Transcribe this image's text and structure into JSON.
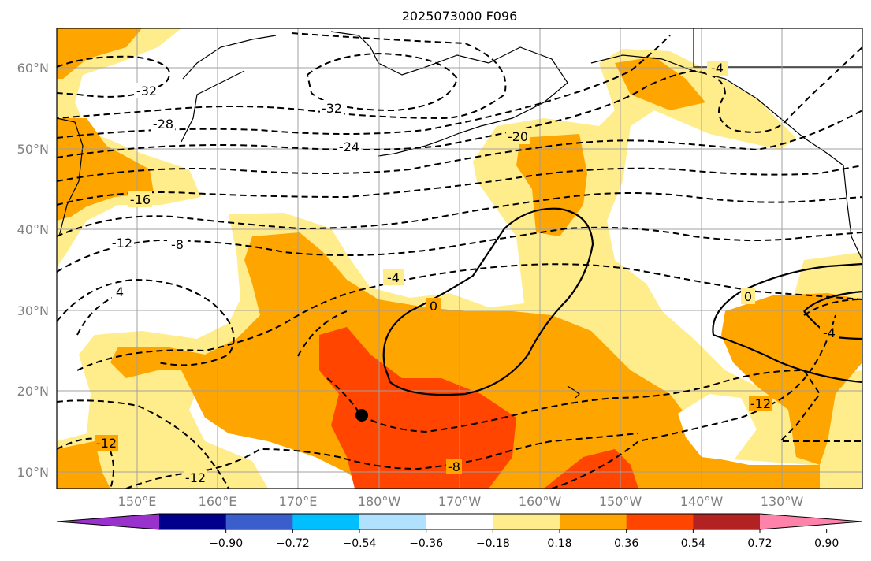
{
  "title": "2025073000 F096",
  "map": {
    "lat_ticks": [
      "60°N",
      "50°N",
      "40°N",
      "30°N",
      "20°N",
      "10°N"
    ],
    "lon_ticks": [
      "150°E",
      "160°E",
      "170°E",
      "180°W",
      "170°W",
      "160°W",
      "150°W",
      "140°W",
      "130°W"
    ],
    "contour_labels": [
      "-32",
      "-28",
      "-24",
      "-20",
      "-16",
      "-12",
      "-8",
      "-4",
      "0",
      "-32",
      "4",
      "-4",
      "0",
      "-12",
      "-12",
      "-8",
      "-12",
      "-4"
    ],
    "marker": "storm-center"
  },
  "colorbar": {
    "ticks": [
      "−0.90",
      "−0.72",
      "−0.54",
      "−0.36",
      "−0.18",
      "0.18",
      "0.36",
      "0.54",
      "0.72",
      "0.90"
    ],
    "colors": [
      "#9932cc",
      "#00008b",
      "#3a5fcd",
      "#00bfff",
      "#b0e2ff",
      "#ffffff",
      "#ffec8b",
      "#ffa500",
      "#ff4500",
      "#b22222",
      "#ff82ab"
    ]
  },
  "palette": {
    "yellow": "#ffec8b",
    "orange": "#ffa500",
    "red_orange": "#ff4500",
    "grid": "#a0a0a0"
  }
}
